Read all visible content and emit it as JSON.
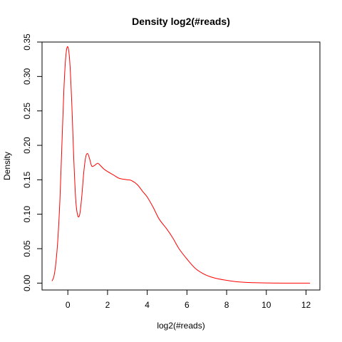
{
  "chart_data": {
    "type": "line",
    "title": "Density log2(#reads)",
    "xlabel": "log2(#reads)",
    "ylabel": "Density",
    "xlim": [
      -1.3,
      12.7
    ],
    "ylim": [
      -0.01,
      0.35
    ],
    "x_ticks": [
      0,
      2,
      4,
      6,
      8,
      10,
      12
    ],
    "x_tick_labels": [
      "0",
      "2",
      "4",
      "6",
      "8",
      "10",
      "12"
    ],
    "y_ticks": [
      0.0,
      0.05,
      0.1,
      0.15,
      0.2,
      0.25,
      0.3,
      0.35
    ],
    "y_tick_labels": [
      "0.00",
      "0.05",
      "0.10",
      "0.15",
      "0.20",
      "0.25",
      "0.30",
      "0.35"
    ],
    "grid": false,
    "legend": "none",
    "series": [
      {
        "color": "#ff0000",
        "x": [
          -0.8,
          -0.7,
          -0.6,
          -0.5,
          -0.4,
          -0.3,
          -0.2,
          -0.1,
          0.0,
          0.1,
          0.2,
          0.3,
          0.4,
          0.5,
          0.6,
          0.7,
          0.8,
          0.9,
          1.0,
          1.1,
          1.2,
          1.3,
          1.4,
          1.5,
          1.6,
          1.8,
          2.0,
          2.3,
          2.6,
          3.0,
          3.2,
          3.5,
          3.8,
          4.0,
          4.3,
          4.6,
          5.0,
          5.3,
          5.6,
          6.0,
          6.4,
          6.8,
          7.2,
          7.6,
          8.0,
          8.5,
          9.0,
          9.5,
          10.0,
          11.0,
          12.2
        ],
        "y": [
          0.003,
          0.01,
          0.03,
          0.065,
          0.12,
          0.2,
          0.28,
          0.33,
          0.343,
          0.32,
          0.26,
          0.18,
          0.12,
          0.098,
          0.1,
          0.125,
          0.16,
          0.183,
          0.188,
          0.18,
          0.17,
          0.17,
          0.172,
          0.174,
          0.172,
          0.166,
          0.162,
          0.157,
          0.152,
          0.15,
          0.149,
          0.143,
          0.132,
          0.125,
          0.11,
          0.093,
          0.078,
          0.065,
          0.05,
          0.035,
          0.022,
          0.014,
          0.009,
          0.006,
          0.004,
          0.002,
          0.001,
          0.0005,
          0.0002,
          0.0,
          0.0
        ]
      }
    ]
  }
}
